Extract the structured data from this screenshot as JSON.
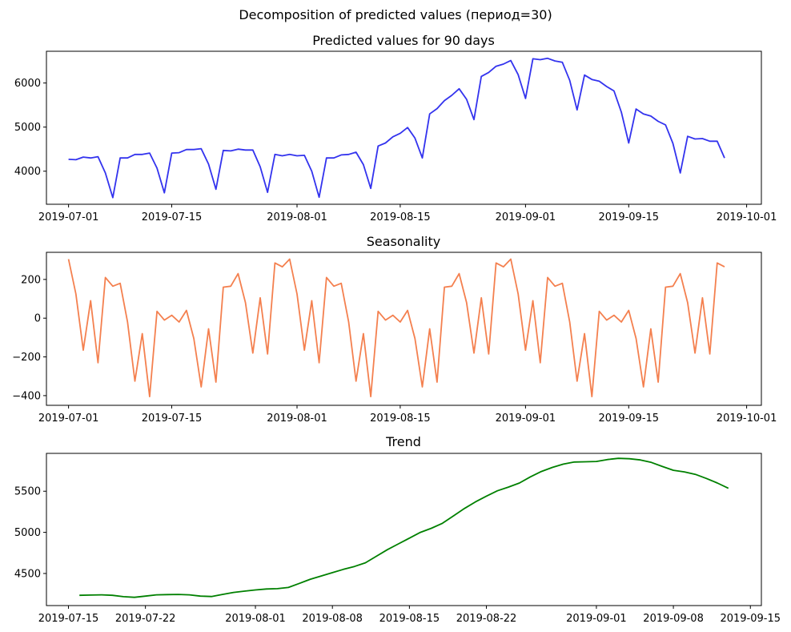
{
  "figure": {
    "suptitle": "Decomposition of predicted values  (период=30)"
  },
  "colors": {
    "predicted": "#3333ee",
    "seasonality": "#f4804f",
    "trend": "#008000"
  },
  "chart_data": [
    {
      "type": "line",
      "title": "Predicted values for 90 days",
      "xlabel": "",
      "ylabel": "",
      "x_start": "2019-07-01",
      "x_step_days": 1,
      "xlim": [
        "2019-06-28",
        "2019-10-03"
      ],
      "ylim": [
        3250,
        6720
      ],
      "x_ticks": [
        "2019-07-01",
        "2019-07-15",
        "2019-08-01",
        "2019-08-15",
        "2019-09-01",
        "2019-09-15",
        "2019-10-01"
      ],
      "y_ticks": [
        4000,
        5000,
        6000
      ],
      "grid": false,
      "series": [
        {
          "color": "#3333ee",
          "values": [
            4270,
            4260,
            4320,
            4300,
            4330,
            3960,
            3400,
            4300,
            4300,
            4380,
            4380,
            4410,
            4070,
            3510,
            4410,
            4420,
            4490,
            4490,
            4510,
            4160,
            3590,
            4470,
            4460,
            4500,
            4480,
            4480,
            4100,
            3520,
            4380,
            4350,
            4380,
            4350,
            4360,
            4000,
            3410,
            4300,
            4300,
            4370,
            4380,
            4430,
            4150,
            3610,
            4570,
            4640,
            4780,
            4860,
            4990,
            4750,
            4300,
            5300,
            5420,
            5600,
            5720,
            5870,
            5630,
            5170,
            6150,
            6240,
            6380,
            6430,
            6510,
            6190,
            5650,
            6550,
            6530,
            6560,
            6500,
            6470,
            6060,
            5390,
            6180,
            6080,
            6040,
            5920,
            5820,
            5340,
            4640,
            5410,
            5300,
            5250,
            5130,
            5050,
            4630,
            3960,
            4790,
            4730,
            4740,
            4680,
            4680,
            4300
          ]
        }
      ]
    },
    {
      "type": "line",
      "title": "Seasonality",
      "xlabel": "",
      "ylabel": "",
      "x_start": "2019-07-01",
      "x_step_days": 1,
      "xlim": [
        "2019-06-28",
        "2019-10-03"
      ],
      "ylim": [
        -450,
        340
      ],
      "x_ticks": [
        "2019-07-01",
        "2019-07-15",
        "2019-08-01",
        "2019-08-15",
        "2019-09-01",
        "2019-09-15",
        "2019-10-01"
      ],
      "y_ticks": [
        -400,
        -200,
        0,
        200
      ],
      "grid": false,
      "series": [
        {
          "color": "#f4804f",
          "values": [
            305,
            125,
            -165,
            90,
            -230,
            210,
            165,
            180,
            -20,
            -325,
            -80,
            -405,
            35,
            -10,
            15,
            -20,
            40,
            -105,
            -355,
            -55,
            -330,
            160,
            165,
            230,
            80,
            -180,
            105,
            -185,
            285,
            265,
            305,
            125,
            -165,
            90,
            -230,
            210,
            165,
            180,
            -20,
            -325,
            -80,
            -405,
            35,
            -10,
            15,
            -20,
            40,
            -105,
            -355,
            -55,
            -330,
            160,
            165,
            230,
            80,
            -180,
            105,
            -185,
            285,
            265,
            305,
            125,
            -165,
            90,
            -230,
            210,
            165,
            180,
            -20,
            -325,
            -80,
            -405,
            35,
            -10,
            15,
            -20,
            40,
            -105,
            -355,
            -55,
            -330,
            160,
            165,
            230,
            80,
            -180,
            105,
            -185,
            285,
            265
          ]
        }
      ]
    },
    {
      "type": "line",
      "title": "Trend",
      "xlabel": "",
      "ylabel": "",
      "x_start": "2019-07-16",
      "x_step_days": 1,
      "xlim": [
        "2019-07-13",
        "2019-09-16"
      ],
      "ylim": [
        4110,
        5960
      ],
      "x_ticks": [
        "2019-07-15",
        "2019-07-22",
        "2019-08-01",
        "2019-08-08",
        "2019-08-15",
        "2019-08-22",
        "2019-09-01",
        "2019-09-08",
        "2019-09-15"
      ],
      "y_ticks": [
        4500,
        5000,
        5500
      ],
      "grid": false,
      "series": [
        {
          "color": "#008000",
          "values": [
            4235,
            4238,
            4240,
            4235,
            4218,
            4210,
            4225,
            4240,
            4243,
            4245,
            4240,
            4225,
            4220,
            4245,
            4270,
            4285,
            4300,
            4312,
            4315,
            4330,
            4380,
            4430,
            4470,
            4510,
            4550,
            4585,
            4630,
            4710,
            4790,
            4860,
            4930,
            5000,
            5050,
            5110,
            5200,
            5290,
            5370,
            5440,
            5505,
            5550,
            5600,
            5675,
            5740,
            5790,
            5830,
            5855,
            5858,
            5862,
            5885,
            5900,
            5895,
            5880,
            5850,
            5800,
            5755,
            5735,
            5705,
            5655,
            5600,
            5535
          ]
        }
      ]
    }
  ]
}
